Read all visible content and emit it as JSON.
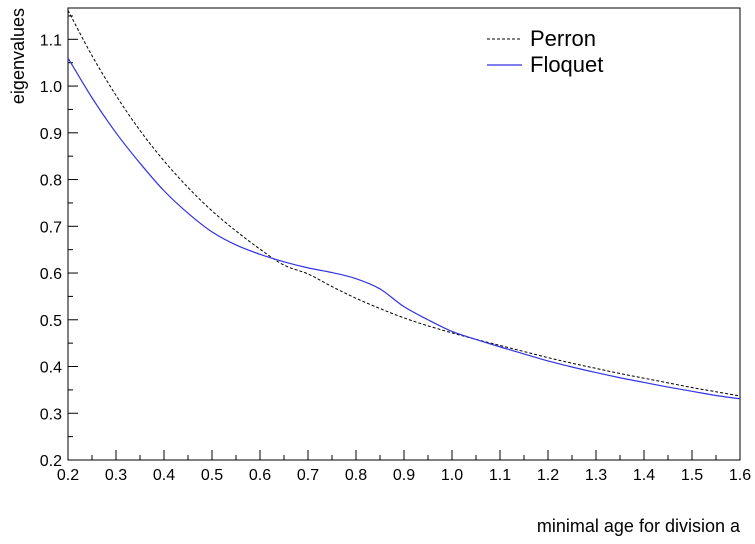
{
  "chart_data": {
    "type": "line",
    "xlabel": "minimal age for division a",
    "ylabel": "eigenvalues",
    "xlim": [
      0.2,
      1.6
    ],
    "ylim": [
      0.2,
      1.167
    ],
    "x_ticks": [
      "0.2",
      "0.3",
      "0.4",
      "0.5",
      "0.6",
      "0.7",
      "0.8",
      "0.9",
      "1.0",
      "1.1",
      "1.2",
      "1.3",
      "1.4",
      "1.5",
      "1.6"
    ],
    "y_ticks": [
      "0.2",
      "0.3",
      "0.4",
      "0.5",
      "0.6",
      "0.7",
      "0.8",
      "0.9",
      "1.0",
      "1.1"
    ],
    "grid": false,
    "legend_position": "top-right",
    "series": [
      {
        "name": "Perron",
        "color": "#000000",
        "dash": "dashed",
        "x": [
          0.2,
          0.25,
          0.3,
          0.35,
          0.4,
          0.45,
          0.5,
          0.55,
          0.6,
          0.65,
          0.7,
          0.75,
          0.8,
          0.85,
          0.9,
          0.95,
          1.0,
          1.05,
          1.1,
          1.15,
          1.2,
          1.25,
          1.3,
          1.35,
          1.4,
          1.45,
          1.5,
          1.55,
          1.6
        ],
        "values": [
          1.162,
          1.065,
          0.98,
          0.905,
          0.84,
          0.783,
          0.733,
          0.69,
          0.651,
          0.617,
          0.598,
          0.571,
          0.546,
          0.524,
          0.504,
          0.487,
          0.472,
          0.458,
          0.445,
          0.432,
          0.419,
          0.407,
          0.396,
          0.385,
          0.375,
          0.365,
          0.355,
          0.346,
          0.337
        ]
      },
      {
        "name": "Floquet",
        "color": "#3333e0",
        "dash": "solid",
        "x": [
          0.2,
          0.25,
          0.3,
          0.35,
          0.4,
          0.45,
          0.5,
          0.55,
          0.6,
          0.65,
          0.7,
          0.75,
          0.8,
          0.85,
          0.9,
          0.95,
          1.0,
          1.05,
          1.1,
          1.15,
          1.2,
          1.25,
          1.3,
          1.35,
          1.4,
          1.45,
          1.5,
          1.55,
          1.6
        ],
        "values": [
          1.06,
          0.975,
          0.9,
          0.835,
          0.776,
          0.728,
          0.688,
          0.66,
          0.64,
          0.624,
          0.611,
          0.601,
          0.588,
          0.566,
          0.528,
          0.5,
          0.475,
          0.458,
          0.442,
          0.427,
          0.412,
          0.399,
          0.387,
          0.376,
          0.366,
          0.356,
          0.347,
          0.338,
          0.331
        ]
      }
    ]
  }
}
